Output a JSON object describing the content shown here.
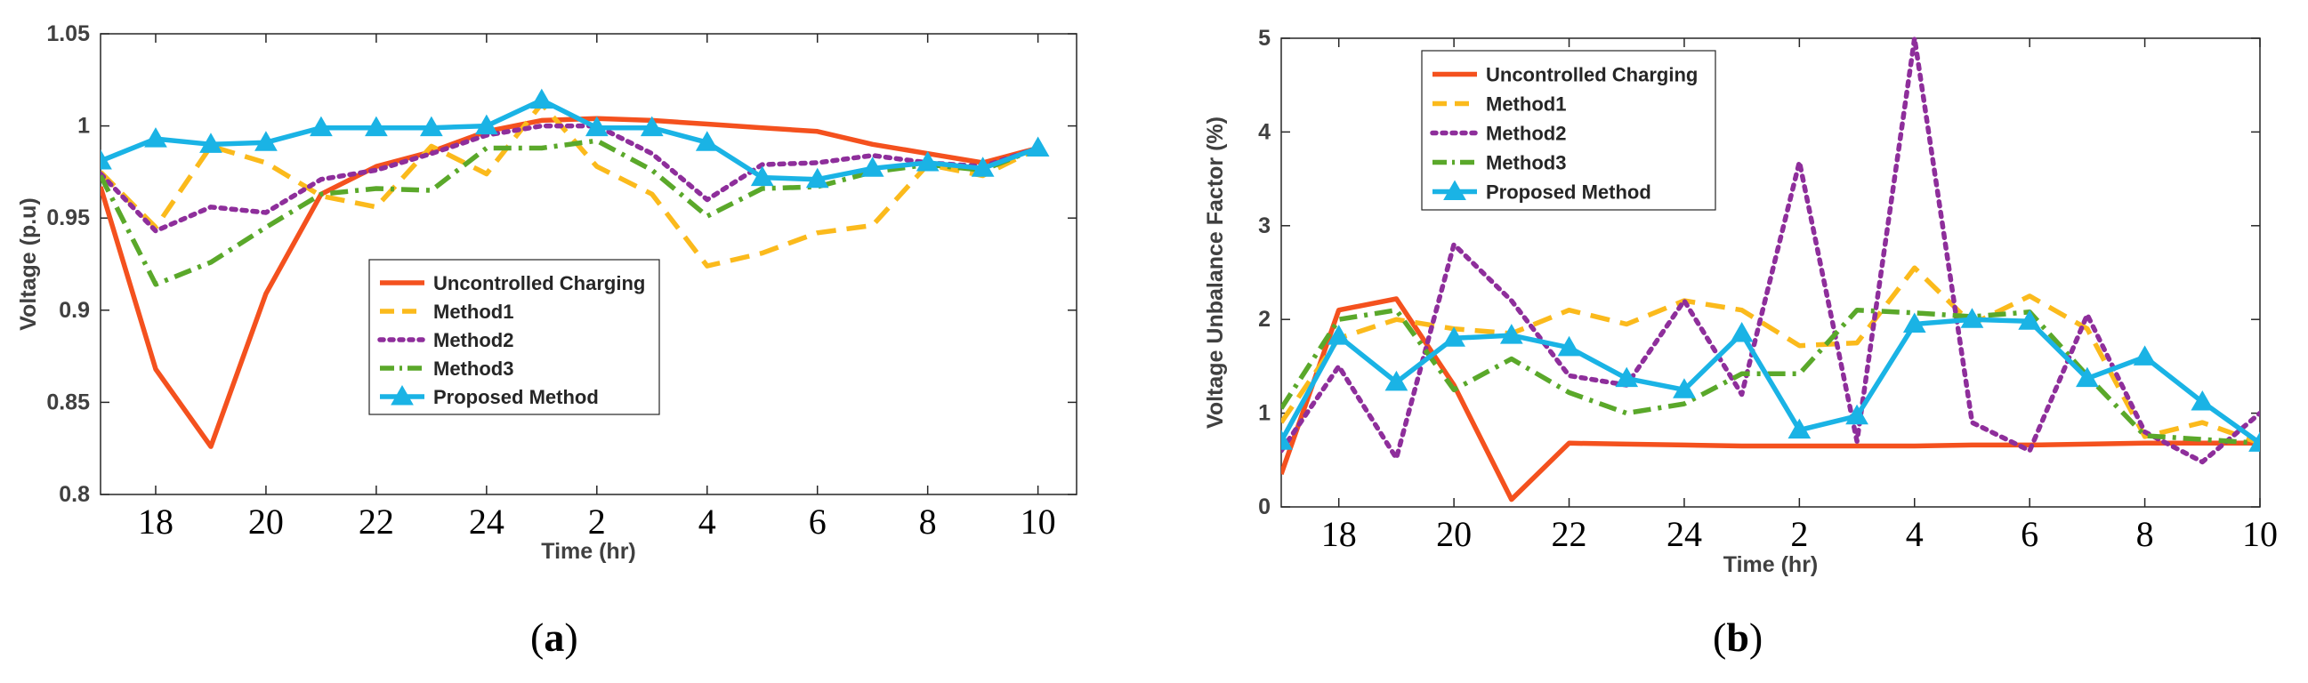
{
  "colors": {
    "uncontrolled": "#F4511E",
    "method1": "#FBBA1C",
    "method2": "#8E2E9B",
    "method3": "#5AA82A",
    "proposed": "#1AB3E5"
  },
  "chart_data": [
    {
      "type": "line",
      "panel_label": "a",
      "xlabel": "Time (hr)",
      "ylabel": "Voltage (p.u)",
      "ylim": [
        0.8,
        1.05
      ],
      "yticks": [
        "0.8",
        "0.85",
        "0.9",
        "0.95",
        "1",
        "1.05"
      ],
      "ytick_values": [
        0.8,
        0.85,
        0.9,
        0.95,
        1.0,
        1.05
      ],
      "xlim": [
        17,
        34.7
      ],
      "xtick_labels": [
        "18",
        "20",
        "22",
        "24",
        "2",
        "4",
        "6",
        "8",
        "10"
      ],
      "xtick_values": [
        18,
        20,
        22,
        24,
        26,
        28,
        30,
        32,
        34
      ],
      "legend_position": "center-left",
      "series": [
        {
          "name": "Uncontrolled Charging",
          "style": "solid",
          "marker": "none",
          "x": [
            17,
            18,
            19,
            20,
            21,
            22,
            23,
            24,
            25,
            26,
            27,
            28,
            29,
            30,
            31,
            32,
            33,
            34
          ],
          "y": [
            0.967,
            0.868,
            0.826,
            0.909,
            0.963,
            0.978,
            0.986,
            0.997,
            1.003,
            1.004,
            1.003,
            1.001,
            0.999,
            0.997,
            0.99,
            0.985,
            0.98,
            0.988
          ]
        },
        {
          "name": "Method1",
          "style": "dashed",
          "marker": "none",
          "x": [
            17,
            18,
            19,
            20,
            21,
            22,
            23,
            24,
            25,
            26,
            27,
            28,
            29,
            30,
            31,
            32,
            33,
            34
          ],
          "y": [
            0.975,
            0.945,
            0.989,
            0.98,
            0.962,
            0.956,
            0.989,
            0.974,
            1.012,
            0.978,
            0.963,
            0.924,
            0.931,
            0.942,
            0.946,
            0.979,
            0.973,
            0.988
          ]
        },
        {
          "name": "Method2",
          "style": "dotted",
          "marker": "none",
          "x": [
            17,
            18,
            19,
            20,
            21,
            22,
            23,
            24,
            25,
            26,
            27,
            28,
            29,
            30,
            31,
            32,
            33,
            34
          ],
          "y": [
            0.974,
            0.943,
            0.956,
            0.953,
            0.971,
            0.976,
            0.985,
            0.995,
            1.0,
            1.0,
            0.985,
            0.96,
            0.979,
            0.98,
            0.984,
            0.98,
            0.978,
            0.988
          ]
        },
        {
          "name": "Method3",
          "style": "dashdot",
          "marker": "none",
          "x": [
            17,
            18,
            19,
            20,
            21,
            22,
            23,
            24,
            25,
            26,
            27,
            28,
            29,
            30,
            31,
            32,
            33,
            34
          ],
          "y": [
            0.973,
            0.914,
            0.926,
            0.945,
            0.963,
            0.966,
            0.965,
            0.988,
            0.988,
            0.992,
            0.976,
            0.951,
            0.966,
            0.967,
            0.975,
            0.979,
            0.976,
            0.988
          ]
        },
        {
          "name": "Proposed Method",
          "style": "solid",
          "marker": "triangle",
          "x": [
            17,
            18,
            19,
            20,
            21,
            22,
            23,
            24,
            25,
            26,
            27,
            28,
            29,
            30,
            31,
            32,
            33,
            34
          ],
          "y": [
            0.981,
            0.993,
            0.99,
            0.991,
            0.999,
            0.999,
            0.999,
            1.0,
            1.014,
            0.999,
            0.999,
            0.991,
            0.972,
            0.971,
            0.977,
            0.98,
            0.977,
            0.988
          ]
        }
      ]
    },
    {
      "type": "line",
      "panel_label": "b",
      "xlabel": "Time (hr)",
      "ylabel": "Voltage Unbalance Factor (%)",
      "ylim": [
        0,
        5
      ],
      "yticks": [
        "0",
        "1",
        "2",
        "3",
        "4",
        "5"
      ],
      "ytick_values": [
        0,
        1,
        2,
        3,
        4,
        5
      ],
      "xlim": [
        17,
        34
      ],
      "xtick_labels": [
        "18",
        "20",
        "22",
        "24",
        "2",
        "4",
        "6",
        "8",
        "10"
      ],
      "xtick_values": [
        18,
        20,
        22,
        24,
        26,
        28,
        30,
        32,
        34
      ],
      "legend_position": "top-left",
      "series": [
        {
          "name": "Uncontrolled Charging",
          "style": "solid",
          "marker": "none",
          "x": [
            17,
            18,
            19,
            20,
            21,
            22,
            23,
            24,
            25,
            26,
            27,
            28,
            29,
            30,
            31,
            32,
            33,
            34
          ],
          "y": [
            0.35,
            2.1,
            2.22,
            1.3,
            0.08,
            0.68,
            0.67,
            0.66,
            0.65,
            0.65,
            0.65,
            0.65,
            0.66,
            0.66,
            0.67,
            0.68,
            0.68,
            0.68
          ]
        },
        {
          "name": "Method1",
          "style": "dashed",
          "marker": "none",
          "x": [
            17,
            18,
            19,
            20,
            21,
            22,
            23,
            24,
            25,
            26,
            27,
            28,
            29,
            30,
            31,
            32,
            33,
            34
          ],
          "y": [
            0.9,
            1.8,
            2.0,
            1.9,
            1.85,
            2.1,
            1.95,
            2.2,
            2.1,
            1.72,
            1.75,
            2.55,
            1.95,
            2.25,
            1.9,
            0.75,
            0.9,
            0.68
          ]
        },
        {
          "name": "Method2",
          "style": "dotted",
          "marker": "none",
          "x": [
            17,
            18,
            19,
            20,
            21,
            22,
            23,
            24,
            25,
            26,
            27,
            28,
            29,
            30,
            31,
            32,
            33,
            34
          ],
          "y": [
            0.6,
            1.5,
            0.52,
            2.8,
            2.2,
            1.4,
            1.3,
            2.2,
            1.2,
            3.68,
            0.7,
            5.0,
            0.9,
            0.6,
            2.05,
            0.8,
            0.48,
            1.0
          ]
        },
        {
          "name": "Method3",
          "style": "dashdot",
          "marker": "none",
          "x": [
            17,
            18,
            19,
            20,
            21,
            22,
            23,
            24,
            25,
            26,
            27,
            28,
            29,
            30,
            31,
            32,
            33,
            34
          ],
          "y": [
            1.05,
            2.0,
            2.1,
            1.25,
            1.58,
            1.22,
            1.0,
            1.1,
            1.42,
            1.42,
            2.1,
            2.07,
            2.03,
            2.08,
            1.4,
            0.76,
            0.72,
            0.68
          ]
        },
        {
          "name": "Proposed Method",
          "style": "solid",
          "marker": "triangle",
          "x": [
            17,
            18,
            19,
            20,
            21,
            22,
            23,
            24,
            25,
            26,
            27,
            28,
            29,
            30,
            31,
            32,
            33,
            34
          ],
          "y": [
            0.7,
            1.82,
            1.33,
            1.8,
            1.83,
            1.7,
            1.37,
            1.25,
            1.85,
            0.82,
            0.97,
            1.95,
            2.0,
            1.98,
            1.37,
            1.6,
            1.12,
            0.68
          ]
        }
      ]
    }
  ]
}
